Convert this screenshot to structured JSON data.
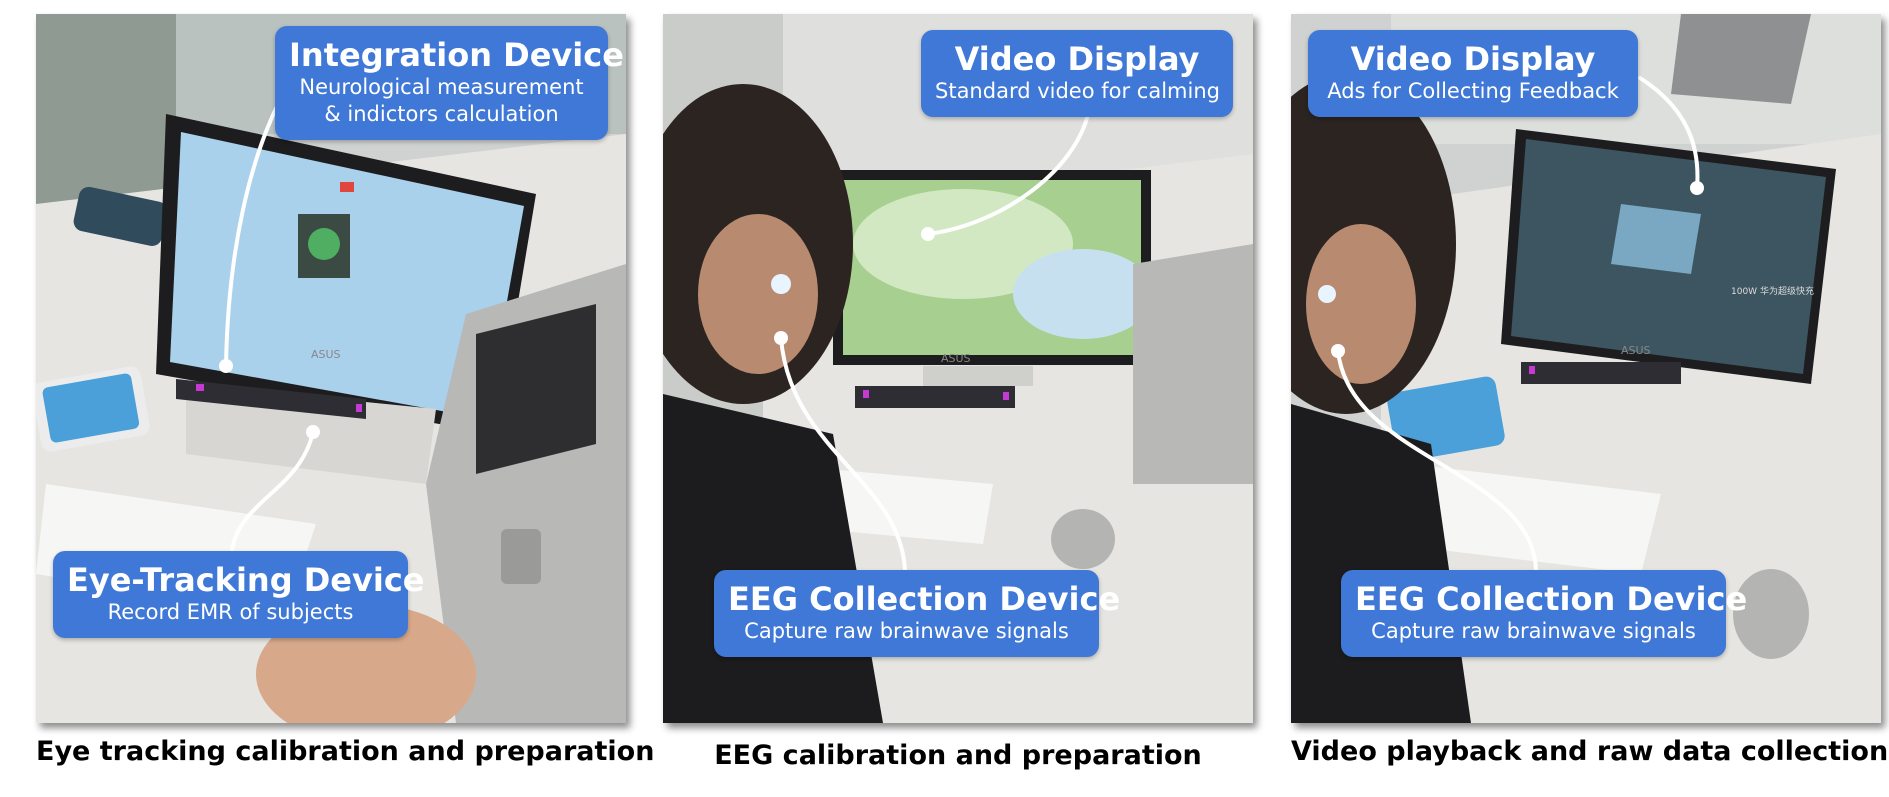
{
  "panels": [
    {
      "caption": "Eye tracking calibration and preparation",
      "callouts": [
        {
          "title": "Integration Device",
          "sub": "Neurological measurement",
          "sub2": "& indictors calculation"
        },
        {
          "title": "Eye-Tracking Device",
          "sub": "Record EMR of subjects"
        }
      ]
    },
    {
      "caption": "EEG calibration and preparation",
      "callouts": [
        {
          "title": "Video Display",
          "sub": "Standard video for calming"
        },
        {
          "title": "EEG Collection Device",
          "sub": "Capture raw brainwave signals"
        }
      ]
    },
    {
      "caption": "Video playback and raw data collection",
      "callouts": [
        {
          "title": "Video Display",
          "sub": "Ads for Collecting Feedback"
        },
        {
          "title": "EEG Collection Device",
          "sub": "Capture raw brainwave signals"
        }
      ]
    }
  ],
  "monitor_brand": "ASUS",
  "screen_text": "100W 华为超级快充",
  "colors": {
    "callout": "#3f78d6",
    "desk": "#e6e5e1",
    "screen_blue": "#a9d1ec"
  }
}
